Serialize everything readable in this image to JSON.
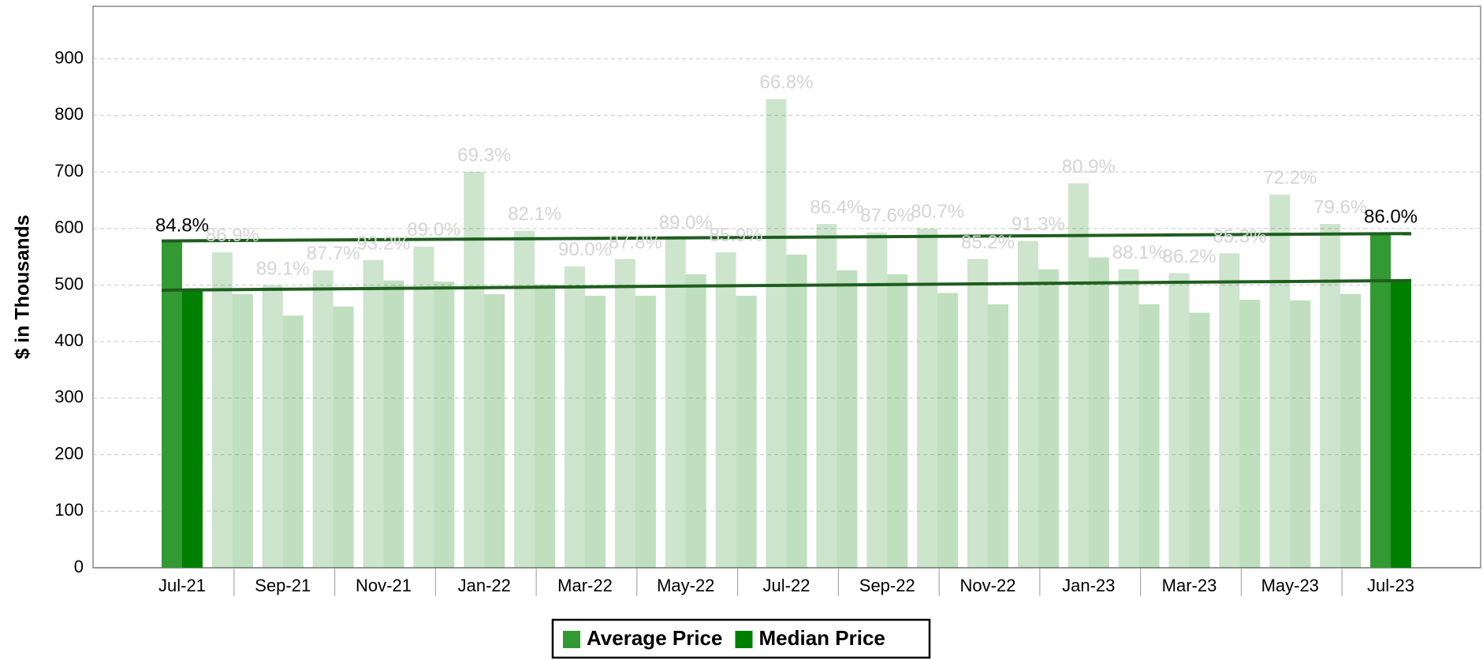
{
  "chart_data": {
    "type": "bar",
    "y_label": "$ in Thousands",
    "categories": [
      "Jul-21",
      null,
      "Sep-21",
      null,
      "Nov-21",
      null,
      "Jan-22",
      null,
      "Mar-22",
      null,
      "May-22",
      null,
      "Jul-22",
      null,
      "Sep-22",
      null,
      "Nov-22",
      null,
      "Jan-23",
      null,
      "Mar-23",
      null,
      "May-23",
      null,
      "Jul-23"
    ],
    "series": [
      {
        "name": "Average Price",
        "color": "#339933",
        "values": [
          576,
          558,
          499,
          526,
          544,
          568,
          700,
          596,
          533,
          546,
          581,
          558,
          829,
          608,
          593,
          600,
          546,
          578,
          680,
          528,
          521,
          556,
          660,
          608,
          591
        ]
      },
      {
        "name": "Median Price",
        "color": "#008000",
        "values": [
          491,
          484,
          446,
          462,
          508,
          506,
          484,
          501,
          481,
          481,
          519,
          481,
          554,
          526,
          519,
          486,
          466,
          528,
          549,
          466,
          451,
          474,
          473,
          484,
          508
        ]
      }
    ],
    "ratio_labels": [
      "84.8%",
      "86.9%",
      "89.1%",
      "87.7%",
      "93.2%",
      "89.0%",
      "69.3%",
      "82.1%",
      "90.0%",
      "87.8%",
      "89.0%",
      "85.9%",
      "66.8%",
      "86.4%",
      "87.6%",
      "80.7%",
      "85.2%",
      "91.3%",
      "80.9%",
      "88.1%",
      "86.2%",
      "85.3%",
      "72.2%",
      "79.6%",
      "86.0%"
    ],
    "highlight": [
      0,
      24
    ],
    "trendlines": [
      {
        "color": "#1e5e1e",
        "values": [
          578,
          591
        ]
      },
      {
        "color": "#1e5e1e",
        "values": [
          491,
          508
        ]
      }
    ],
    "ylim": [
      0,
      993
    ],
    "yticks": [
      0,
      100,
      200,
      300,
      400,
      500,
      600,
      700,
      800,
      900
    ],
    "grid": true
  }
}
